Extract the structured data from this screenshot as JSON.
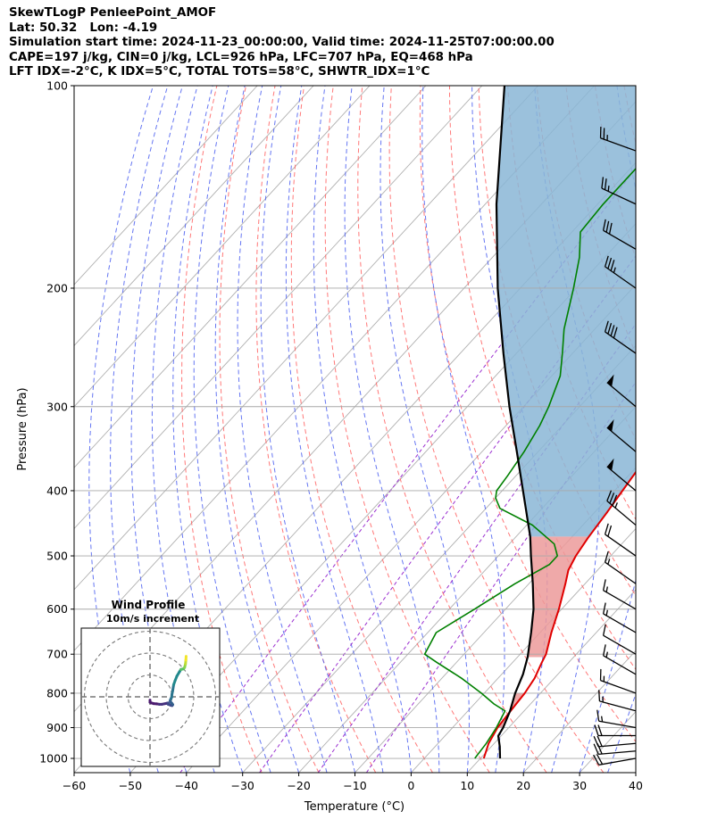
{
  "header": {
    "line1": "SkewTLogP PenleePoint_AMOF",
    "line2": "Lat: 50.32   Lon: -4.19",
    "line3": "Simulation start time: 2024-11-23_00:00:00, Valid time: 2024-11-25T07:00:00.00",
    "line4": "CAPE=197 j/kg, CIN=0 j/kg, LCL=926 hPa, LFC=707 hPa, EQ=468 hPa",
    "line5": "LFT IDX=-2°C, K IDX=5°C, TOTAL TOTS=58°C, SHWTR_IDX=1°C"
  },
  "chart_data": {
    "type": "skewt-logp",
    "xlabel": "Temperature (°C)",
    "ylabel": "Pressure (hPa)",
    "xlim": [
      -60,
      40
    ],
    "ylim": [
      1050,
      100
    ],
    "y_scale": "log",
    "x_ticks": [
      -60,
      -50,
      -40,
      -30,
      -20,
      -10,
      0,
      10,
      20,
      30,
      40
    ],
    "x_tick_labels": [
      "−60",
      "−50",
      "−40",
      "−30",
      "−20",
      "−10",
      "0",
      "10",
      "20",
      "30",
      "40"
    ],
    "y_ticks": [
      1000,
      900,
      800,
      700,
      600,
      500,
      400,
      300,
      200,
      100
    ],
    "y_tick_labels": [
      "1000",
      "900",
      "800",
      "700",
      "600",
      "500",
      "400",
      "300",
      "200",
      "100"
    ],
    "colors": {
      "temperature": "#e00000",
      "dewpoint": "#008000",
      "parcel": "#000000",
      "cape_fill": "#8ab6d6",
      "cin_fill": "#ec9a9a",
      "dry_adiabat": "#ff6060",
      "moist_adiabat": "#4a5ef0",
      "mixing_ratio": "#9b30d0",
      "isotherm": "#b0b0b0"
    },
    "series": [
      {
        "name": "Temperature",
        "points": [
          [
            1000,
            10.6
          ],
          [
            950,
            9.0
          ],
          [
            900,
            8.0
          ],
          [
            850,
            7.6
          ],
          [
            800,
            7.2
          ],
          [
            760,
            6.5
          ],
          [
            720,
            5.2
          ],
          [
            700,
            4.6
          ],
          [
            650,
            2.0
          ],
          [
            600,
            -0.5
          ],
          [
            550,
            -3.5
          ],
          [
            525,
            -5.2
          ],
          [
            500,
            -6.2
          ],
          [
            470,
            -7.0
          ],
          [
            430,
            -7.8
          ],
          [
            400,
            -8.6
          ],
          [
            360,
            -9.7
          ],
          [
            330,
            -11.0
          ],
          [
            300,
            -13.5
          ],
          [
            275,
            -16.2
          ],
          [
            260,
            -17.2
          ],
          [
            240,
            -18.5
          ],
          [
            220,
            -21.8
          ],
          [
            200,
            -25.6
          ],
          [
            180,
            -28.0
          ],
          [
            160,
            -31.0
          ],
          [
            150,
            -33.0
          ],
          [
            140,
            -35.5
          ],
          [
            130,
            -38.0
          ],
          [
            120,
            -41.0
          ],
          [
            110,
            -44.5
          ],
          [
            100,
            -48.0
          ]
        ]
      },
      {
        "name": "Dewpoint",
        "points": [
          [
            1000,
            9.0
          ],
          [
            950,
            8.6
          ],
          [
            900,
            7.8
          ],
          [
            850,
            6.6
          ],
          [
            830,
            3.5
          ],
          [
            800,
            -0.5
          ],
          [
            760,
            -6.5
          ],
          [
            720,
            -13.5
          ],
          [
            700,
            -17.0
          ],
          [
            650,
            -18.5
          ],
          [
            600,
            -15.5
          ],
          [
            550,
            -12.5
          ],
          [
            515,
            -9.5
          ],
          [
            500,
            -9.5
          ],
          [
            480,
            -12.0
          ],
          [
            450,
            -19.0
          ],
          [
            425,
            -27.5
          ],
          [
            410,
            -30.0
          ],
          [
            400,
            -31.0
          ],
          [
            380,
            -31.5
          ],
          [
            350,
            -32.5
          ],
          [
            320,
            -34.0
          ],
          [
            300,
            -35.5
          ],
          [
            270,
            -38.5
          ],
          [
            250,
            -41.8
          ],
          [
            230,
            -45.5
          ],
          [
            200,
            -50.5
          ],
          [
            180,
            -54.5
          ],
          [
            165,
            -58.5
          ],
          [
            150,
            -59.0
          ],
          [
            140,
            -59.0
          ],
          [
            130,
            -59.0
          ],
          [
            120,
            -59.5
          ],
          [
            110,
            -60.0
          ],
          [
            100,
            -60.5
          ]
        ]
      },
      {
        "name": "Parcel",
        "points": [
          [
            1000,
            13.5
          ],
          [
            960,
            11.5
          ],
          [
            926,
            9.5
          ],
          [
            900,
            9.0
          ],
          [
            850,
            7.5
          ],
          [
            800,
            5.5
          ],
          [
            750,
            3.8
          ],
          [
            707,
            1.8
          ],
          [
            650,
            -1.6
          ],
          [
            600,
            -5.0
          ],
          [
            550,
            -9.3
          ],
          [
            500,
            -14.2
          ],
          [
            468,
            -17.5
          ],
          [
            400,
            -26.3
          ],
          [
            350,
            -33.8
          ],
          [
            300,
            -42.5
          ],
          [
            250,
            -52.3
          ],
          [
            200,
            -64.0
          ],
          [
            150,
            -78.0
          ],
          [
            100,
            -96.0
          ]
        ]
      }
    ],
    "wind_barbs": [
      {
        "pressure": 1000,
        "speed_kt": 20,
        "direction": 260
      },
      {
        "pressure": 975,
        "speed_kt": 20,
        "direction": 265
      },
      {
        "pressure": 950,
        "speed_kt": 20,
        "direction": 265
      },
      {
        "pressure": 925,
        "speed_kt": 20,
        "direction": 270
      },
      {
        "pressure": 900,
        "speed_kt": 15,
        "direction": 280
      },
      {
        "pressure": 850,
        "speed_kt": 15,
        "direction": 285
      },
      {
        "pressure": 800,
        "speed_kt": 15,
        "direction": 290
      },
      {
        "pressure": 750,
        "speed_kt": 15,
        "direction": 300
      },
      {
        "pressure": 700,
        "speed_kt": 10,
        "direction": 300
      },
      {
        "pressure": 650,
        "speed_kt": 15,
        "direction": 300
      },
      {
        "pressure": 600,
        "speed_kt": 15,
        "direction": 300
      },
      {
        "pressure": 550,
        "speed_kt": 15,
        "direction": 305
      },
      {
        "pressure": 500,
        "speed_kt": 20,
        "direction": 305
      },
      {
        "pressure": 450,
        "speed_kt": 35,
        "direction": 310
      },
      {
        "pressure": 400,
        "speed_kt": 50,
        "direction": 310
      },
      {
        "pressure": 350,
        "speed_kt": 50,
        "direction": 310
      },
      {
        "pressure": 300,
        "speed_kt": 50,
        "direction": 310
      },
      {
        "pressure": 250,
        "speed_kt": 40,
        "direction": 305
      },
      {
        "pressure": 200,
        "speed_kt": 35,
        "direction": 305
      },
      {
        "pressure": 175,
        "speed_kt": 30,
        "direction": 300
      },
      {
        "pressure": 150,
        "speed_kt": 25,
        "direction": 295
      },
      {
        "pressure": 125,
        "speed_kt": 25,
        "direction": 290
      },
      {
        "pressure": 100,
        "speed_kt": 25,
        "direction": 290
      }
    ],
    "hodograph": {
      "title": "Wind Profile",
      "subtitle": "10m/s increment",
      "ring_step_ms": 10,
      "rings": 3,
      "points": [
        [
          0.0,
          -1.5
        ],
        [
          0.0,
          -2.5
        ],
        [
          0.6,
          -2.8
        ],
        [
          1.6,
          -3.1
        ],
        [
          3.0,
          -3.2
        ],
        [
          4.2,
          -3.4
        ],
        [
          5.5,
          -3.4
        ],
        [
          6.5,
          -3.2
        ],
        [
          7.5,
          -3.0
        ],
        [
          8.3,
          -2.8
        ],
        [
          8.3,
          -3.4
        ],
        [
          9.6,
          -3.9
        ],
        [
          10.1,
          -4.0
        ],
        [
          10.4,
          -3.6
        ],
        [
          10.1,
          -3.1
        ],
        [
          9.6,
          -2.6
        ],
        [
          9.2,
          -1.8
        ],
        [
          9.5,
          -1.0
        ],
        [
          9.9,
          -0.2
        ],
        [
          10.0,
          1.0
        ],
        [
          10.4,
          3.0
        ],
        [
          10.8,
          5.5
        ],
        [
          11.5,
          7.5
        ],
        [
          12.3,
          9.5
        ],
        [
          13.5,
          11.5
        ],
        [
          14.1,
          12.5
        ]
      ],
      "upper_points": [
        [
          14.1,
          12.5
        ],
        [
          15.3,
          12.8
        ],
        [
          15.8,
          13.4
        ],
        [
          16.2,
          15.0
        ],
        [
          16.4,
          16.8
        ],
        [
          16.5,
          18.5
        ]
      ]
    }
  }
}
